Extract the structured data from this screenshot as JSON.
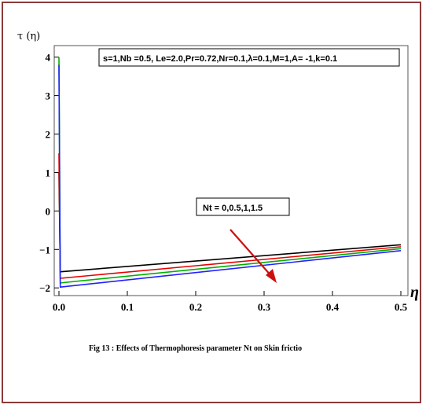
{
  "chart_data": {
    "type": "line",
    "ylabel": "τ (η)",
    "xlabel": "η",
    "xlim": [
      0,
      0.5
    ],
    "ylim": [
      -2.2,
      4.3
    ],
    "x_ticks": [
      0.0,
      0.1,
      0.2,
      0.3,
      0.4,
      0.5
    ],
    "x_tick_labels": [
      "0.0",
      "0.1",
      "0.2",
      "0.3",
      "0.4",
      "0.5"
    ],
    "y_ticks": [
      -2,
      -1,
      0,
      1,
      2,
      3,
      4
    ],
    "y_tick_labels": [
      "−2",
      "−1",
      "0",
      "1",
      "2",
      "3",
      "4"
    ],
    "parameters_box": "s=1,Nb =0.5, Le=2.0,Pr=0.72,Nr=0.1,λ=0.1,M=1,A= -1,k=0.1",
    "annotation": "Nt = 0,0.5,1,1.5",
    "caption": "Fig 13 : Effects of Thermophoresis parameter Nt on Skin frictio",
    "series": [
      {
        "color": "#000000",
        "x": [
          0.0,
          0.002,
          0.5
        ],
        "y": [
          1.0,
          -1.58,
          -0.88
        ]
      },
      {
        "color": "#e60000",
        "x": [
          0.0,
          0.002,
          0.5
        ],
        "y": [
          1.5,
          -1.75,
          -0.93
        ]
      },
      {
        "color": "#00b000",
        "x": [
          0.0,
          0.002,
          0.5
        ],
        "y": [
          4.0,
          -1.87,
          -0.98
        ]
      },
      {
        "color": "#2020ff",
        "x": [
          0.0,
          0.002,
          0.5
        ],
        "y": [
          3.8,
          -1.98,
          -1.03
        ]
      }
    ],
    "grid": false,
    "arrow_color": "#cc1010"
  }
}
